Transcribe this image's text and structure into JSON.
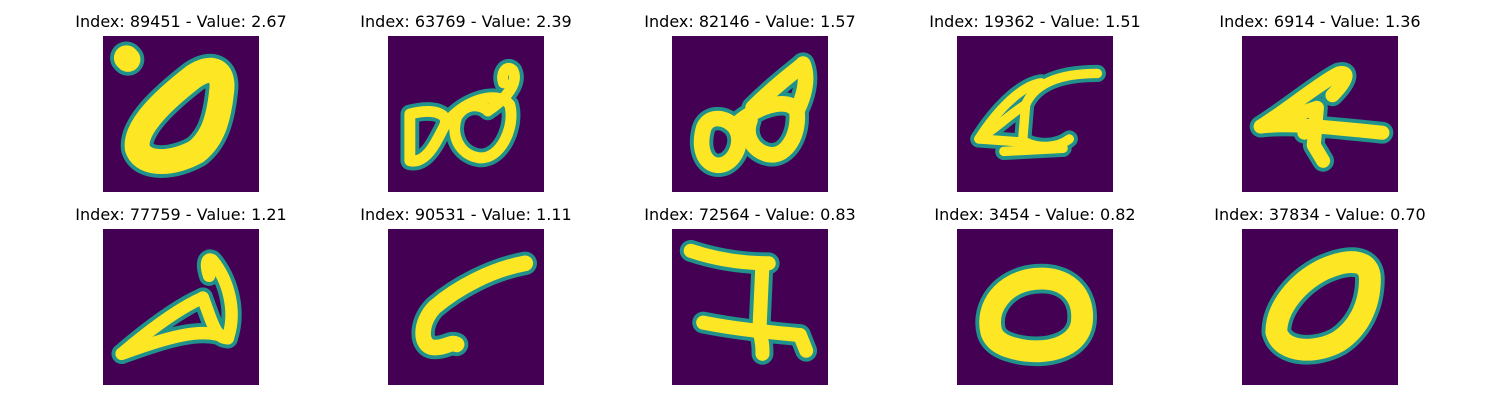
{
  "figure": {
    "colormap": "viridis",
    "background_color": "#440154",
    "stroke_color": "#fde725",
    "edge_color": "#21918c",
    "panels": [
      {
        "title": "Index: 89451 - Value: 2.67",
        "index": 89451,
        "value": 2.67,
        "glyph": "slanted-zero-thick"
      },
      {
        "title": "Index: 63769 - Value: 2.39",
        "index": 63769,
        "value": 2.39,
        "glyph": "double-loop"
      },
      {
        "title": "Index: 82146 - Value: 1.57",
        "index": 82146,
        "value": 1.57,
        "glyph": "double-loop-thick"
      },
      {
        "title": "Index: 19362 - Value: 1.51",
        "index": 19362,
        "value": 1.51,
        "glyph": "four-like"
      },
      {
        "title": "Index: 6914 - Value: 1.36",
        "index": 6914,
        "value": 1.36,
        "glyph": "four-like-thick"
      },
      {
        "title": "Index: 77759 - Value: 1.21",
        "index": 77759,
        "value": 1.21,
        "glyph": "triangle-loop"
      },
      {
        "title": "Index: 90531 - Value: 1.11",
        "index": 90531,
        "value": 1.11,
        "glyph": "hook-stroke"
      },
      {
        "title": "Index: 72564 - Value: 0.83",
        "index": 72564,
        "value": 0.83,
        "glyph": "z-shape"
      },
      {
        "title": "Index: 3454 - Value: 0.82",
        "index": 3454,
        "value": 0.82,
        "glyph": "round-zero"
      },
      {
        "title": "Index: 37834 - Value: 0.70",
        "index": 37834,
        "value": 0.7,
        "glyph": "slanted-zero"
      }
    ]
  }
}
